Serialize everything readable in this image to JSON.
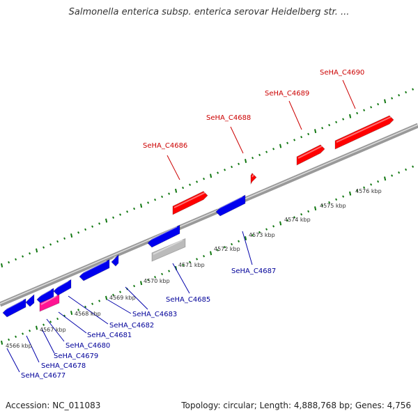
{
  "title": "Salmonella enterica subsp. enterica serovar Heidelberg str. ...",
  "footer": {
    "accession": "Accession: NC_011083",
    "summary": "Topology: circular; Length: 4,888,768 bp; Genes: 4,756"
  },
  "colors": {
    "forward_gene": "#ff0000",
    "reverse_gene": "#0000ee",
    "pink_gene": "#ff1493",
    "grey_gene": "#bbbbbb",
    "forward_label": "#cc0000",
    "reverse_label": "#000099",
    "backbone": "#888888",
    "ticks": "#117711"
  },
  "kbp_labels": [
    "4566 kbp",
    "4567 kbp",
    "4568 kbp",
    "4569 kbp",
    "4570 kbp",
    "4571 kbp",
    "4572 kbp",
    "4573 kbp",
    "4574 kbp",
    "4575 kbp",
    "4576 kbp"
  ],
  "forward_labels": [
    "SeHA_C4686",
    "SeHA_C4688",
    "SeHA_C4689",
    "SeHA_C4690"
  ],
  "reverse_labels": [
    "SeHA_C4677",
    "SeHA_C4678",
    "SeHA_C4679",
    "SeHA_C4680",
    "SeHA_C4681",
    "SeHA_C4682",
    "SeHA_C4683",
    "SeHA_C4685",
    "SeHA_C4687"
  ]
}
